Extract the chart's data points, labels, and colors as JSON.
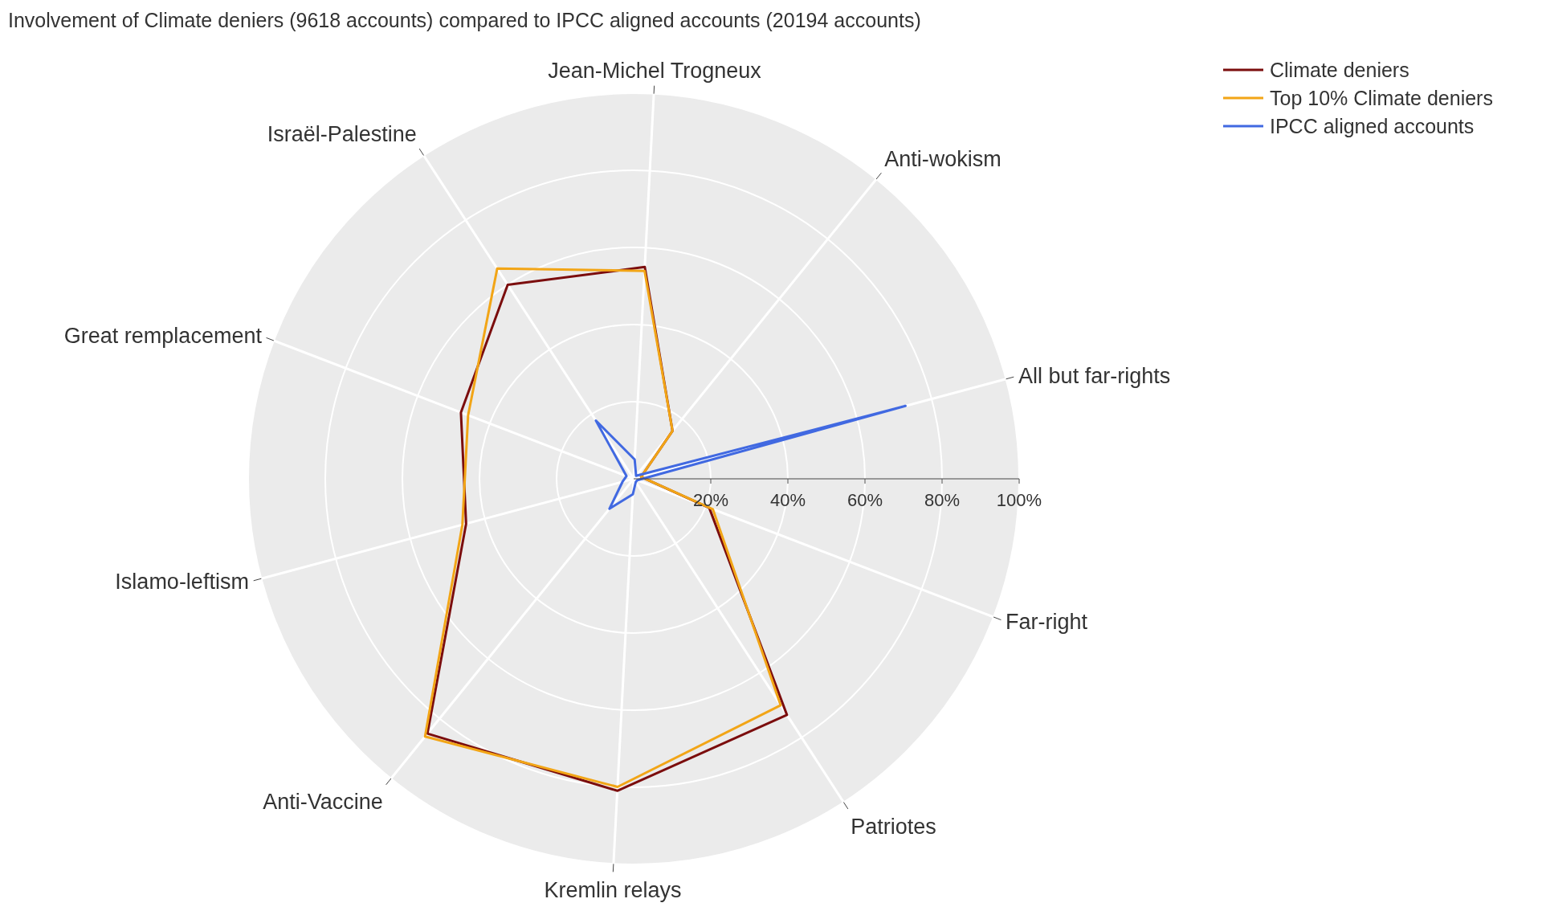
{
  "chart_data": {
    "type": "radar",
    "title": "Involvement of Climate deniers (9618 accounts) compared to IPCC aligned accounts (20194 accounts)",
    "categories": [
      "Jean-Michel Trogneux",
      "Anti-wokism",
      "All but far-rights",
      "Far-right",
      "Patriotes",
      "Kremlin relays",
      "Anti-Vaccine",
      "Islamo-leftism",
      "Great remplacement",
      "Israël-Palestine"
    ],
    "series": [
      {
        "name": "Climate deniers",
        "color": "#7b0d0d",
        "values": [
          55,
          16,
          2,
          21,
          73,
          81,
          85,
          45,
          48,
          60
        ]
      },
      {
        "name": "Top 10% Climate deniers",
        "color": "#f2a516",
        "values": [
          54,
          16,
          2,
          22,
          70,
          80,
          86,
          46,
          46,
          65
        ]
      },
      {
        "name": "IPCC aligned accounts",
        "color": "#4169e1",
        "values": [
          5,
          1,
          73,
          1,
          1,
          4,
          10,
          3,
          2,
          18
        ]
      }
    ],
    "ylim": [
      0,
      100
    ],
    "yticks": [
      {
        "value": 20,
        "label": "20%"
      },
      {
        "value": 40,
        "label": "40%"
      },
      {
        "value": 60,
        "label": "60%"
      },
      {
        "value": 80,
        "label": "80%"
      },
      {
        "value": 100,
        "label": "100%"
      }
    ],
    "grid": true,
    "legend": "top right"
  }
}
